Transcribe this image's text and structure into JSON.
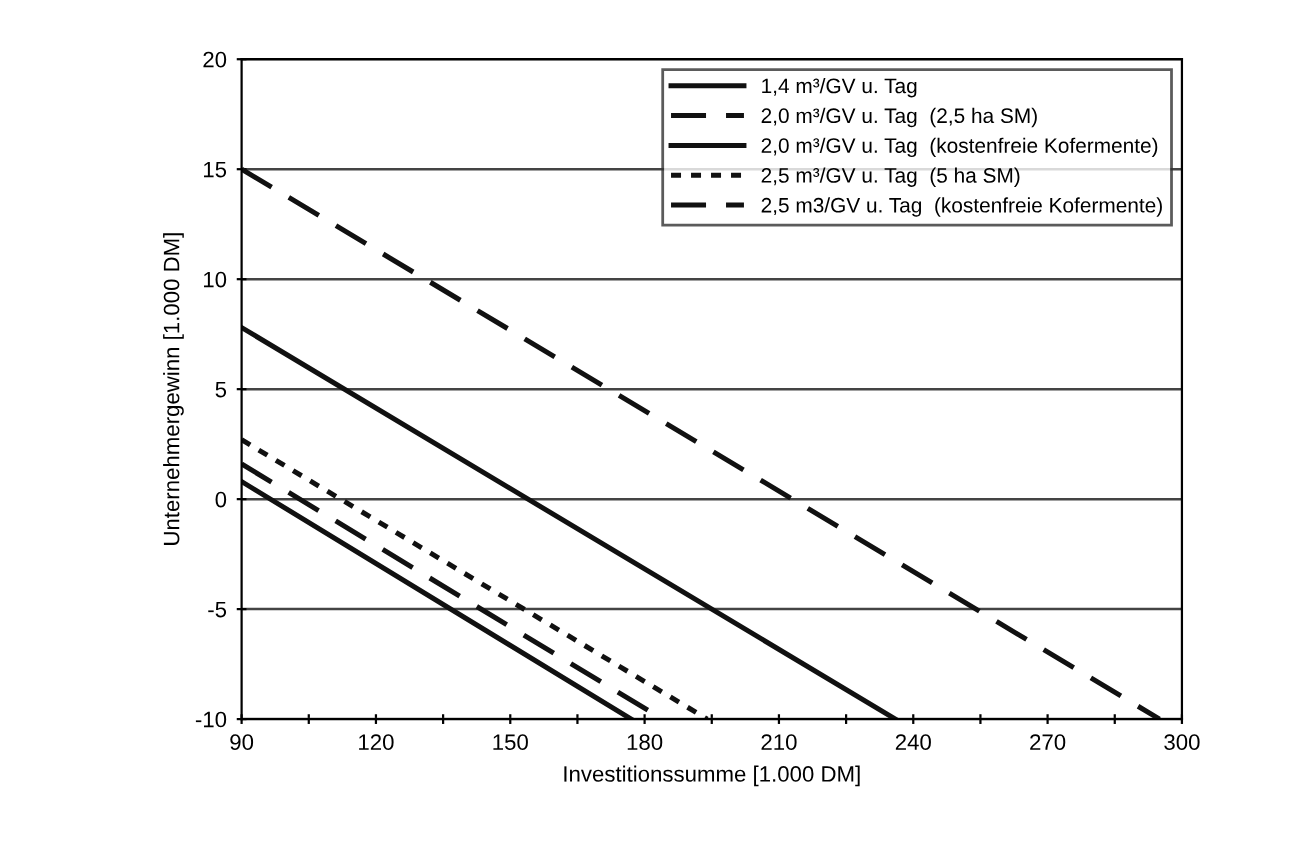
{
  "chart_data": {
    "type": "line",
    "xlabel": "Investitionssumme [1.000 DM]",
    "ylabel": "Unternehmergewinn [1.000 DM]",
    "xlim": [
      90,
      300
    ],
    "ylim": [
      -10,
      20
    ],
    "xticks": [
      90,
      {
        "value": 105,
        "label": null
      },
      120,
      {
        "value": 135,
        "label": null
      },
      150,
      {
        "value": 165,
        "label": null
      },
      180,
      {
        "value": 195,
        "label": null
      },
      210,
      {
        "value": 225,
        "label": null
      },
      240,
      {
        "value": 255,
        "label": null
      },
      270,
      {
        "value": 285,
        "label": null
      },
      300
    ],
    "yticks": [
      -10,
      -5,
      0,
      5,
      10,
      15,
      20
    ],
    "grid": "y",
    "legend": "top right",
    "series": [
      {
        "name": "1,4 m³/GV u. Tag",
        "color": "#111111",
        "line_style": "solid",
        "x": [
          90,
          177
        ],
        "values": [
          0.8,
          -10
        ]
      },
      {
        "name": "2,0 m³/GV u. Tag  (2,5 ha SM)",
        "color": "#111111",
        "line_style": "dashed",
        "x": [
          90,
          295
        ],
        "values": [
          15,
          -10
        ]
      },
      {
        "name": "2,0 m³/GV u. Tag  (kostenfreie Kofermente)",
        "color": "#111111",
        "line_style": "solid",
        "x": [
          90,
          236
        ],
        "values": [
          7.8,
          -10
        ]
      },
      {
        "name": "2,5 m³/GV u. Tag  (5 ha SM)",
        "color": "#111111",
        "line_style": "dotted",
        "x": [
          90,
          194
        ],
        "values": [
          2.7,
          -10
        ]
      },
      {
        "name": "2,5 m3/GV u. Tag  (kostenfreie Kofermente)",
        "color": "#111111",
        "line_style": "dashed",
        "x": [
          90,
          184
        ],
        "values": [
          1.6,
          -10
        ]
      }
    ]
  }
}
